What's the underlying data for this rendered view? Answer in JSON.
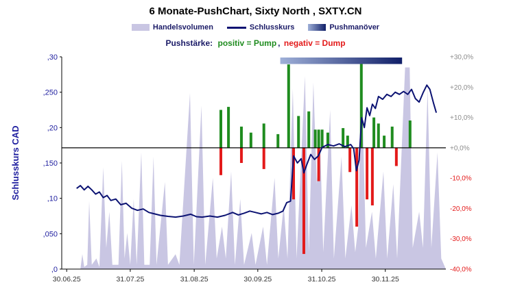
{
  "title": "6 Monate-PushChart, Sixty North , SXTY.CN",
  "legend": {
    "volume": "Handelsvolumen",
    "close": "Schlusskurs",
    "push": "Pushmanöver"
  },
  "subtitle": {
    "prefix": "Pushstärke:",
    "positive": "positiv = Pump",
    "comma": ",",
    "negative": "negativ = Dump"
  },
  "y_axis_title": "Schlusskurs CAD",
  "colors": {
    "volume": "#c9c6e3",
    "close_line": "#0b1272",
    "band_light": "#9fb0d8",
    "band_dark": "#101f68",
    "pump": "#1f8c1f",
    "dump": "#e31a1a",
    "axis_left_text": "#2020a0",
    "axis_right_pos": "#8c8c8c",
    "axis_right_neg": "#e31a1a",
    "x_text": "#333333"
  },
  "chart_data": {
    "type": "composite",
    "series_types": {
      "volume": "area",
      "close": "line",
      "push": "bar",
      "band": "interval"
    },
    "x_unit": "fraction-of-plot-width",
    "x_ticks": [
      "30.06.25",
      "31.07.25",
      "31.08.25",
      "30.09.25",
      "31.10.25",
      "30.11.25"
    ],
    "x_tick_pos": [
      0.004,
      0.171,
      0.339,
      0.506,
      0.674,
      0.841
    ],
    "price_axis": {
      "label": "Schlusskurs CAD",
      "range": [
        0,
        0.3
      ],
      "ticks": [
        {
          "v": 0.3,
          "t": ",30"
        },
        {
          "v": 0.25,
          "t": ",250"
        },
        {
          "v": 0.2,
          "t": ",20"
        },
        {
          "v": 0.15,
          "t": ",150"
        },
        {
          "v": 0.1,
          "t": ",10"
        },
        {
          "v": 0.05,
          "t": ",050"
        },
        {
          "v": 0.0,
          "t": ",0"
        }
      ]
    },
    "pct_axis": {
      "range": [
        -40,
        30
      ],
      "ticks": [
        {
          "v": 30,
          "t": "+30,0%"
        },
        {
          "v": 20,
          "t": "+20,0%"
        },
        {
          "v": 10,
          "t": "+10,0%"
        },
        {
          "v": 0,
          "t": "+0,0%"
        },
        {
          "v": -10,
          "t": "-10,0%"
        },
        {
          "v": -20,
          "t": "-20,0%"
        },
        {
          "v": -30,
          "t": "-30,0%"
        },
        {
          "v": -40,
          "t": "-40,0%"
        }
      ]
    },
    "close_series": [
      [
        0.03,
        0.114
      ],
      [
        0.04,
        0.118
      ],
      [
        0.05,
        0.112
      ],
      [
        0.06,
        0.117
      ],
      [
        0.07,
        0.112
      ],
      [
        0.08,
        0.106
      ],
      [
        0.09,
        0.109
      ],
      [
        0.1,
        0.101
      ],
      [
        0.11,
        0.104
      ],
      [
        0.12,
        0.097
      ],
      [
        0.133,
        0.099
      ],
      [
        0.146,
        0.091
      ],
      [
        0.16,
        0.093
      ],
      [
        0.175,
        0.086
      ],
      [
        0.19,
        0.083
      ],
      [
        0.205,
        0.085
      ],
      [
        0.22,
        0.08
      ],
      [
        0.235,
        0.078
      ],
      [
        0.25,
        0.076
      ],
      [
        0.27,
        0.0745
      ],
      [
        0.29,
        0.0735
      ],
      [
        0.31,
        0.075
      ],
      [
        0.33,
        0.0775
      ],
      [
        0.345,
        0.074
      ],
      [
        0.36,
        0.0735
      ],
      [
        0.38,
        0.075
      ],
      [
        0.4,
        0.0735
      ],
      [
        0.42,
        0.076
      ],
      [
        0.44,
        0.08
      ],
      [
        0.455,
        0.0765
      ],
      [
        0.47,
        0.079
      ],
      [
        0.485,
        0.082
      ],
      [
        0.5,
        0.08
      ],
      [
        0.515,
        0.078
      ],
      [
        0.53,
        0.08
      ],
      [
        0.545,
        0.077
      ],
      [
        0.56,
        0.079
      ],
      [
        0.572,
        0.082
      ],
      [
        0.582,
        0.094
      ],
      [
        0.592,
        0.096
      ],
      [
        0.6,
        0.16
      ],
      [
        0.61,
        0.15
      ],
      [
        0.62,
        0.156
      ],
      [
        0.627,
        0.136
      ],
      [
        0.635,
        0.148
      ],
      [
        0.645,
        0.162
      ],
      [
        0.655,
        0.155
      ],
      [
        0.665,
        0.16
      ],
      [
        0.675,
        0.172
      ],
      [
        0.69,
        0.176
      ],
      [
        0.705,
        0.174
      ],
      [
        0.72,
        0.177
      ],
      [
        0.735,
        0.173
      ],
      [
        0.75,
        0.176
      ],
      [
        0.758,
        0.17
      ],
      [
        0.765,
        0.139
      ],
      [
        0.772,
        0.154
      ],
      [
        0.779,
        0.214
      ],
      [
        0.786,
        0.2
      ],
      [
        0.793,
        0.228
      ],
      [
        0.8,
        0.217
      ],
      [
        0.807,
        0.233
      ],
      [
        0.815,
        0.227
      ],
      [
        0.823,
        0.244
      ],
      [
        0.834,
        0.24
      ],
      [
        0.845,
        0.247
      ],
      [
        0.856,
        0.244
      ],
      [
        0.867,
        0.25
      ],
      [
        0.878,
        0.247
      ],
      [
        0.889,
        0.251
      ],
      [
        0.9,
        0.247
      ],
      [
        0.91,
        0.254
      ],
      [
        0.92,
        0.241
      ],
      [
        0.93,
        0.236
      ],
      [
        0.94,
        0.249
      ],
      [
        0.95,
        0.26
      ],
      [
        0.958,
        0.254
      ],
      [
        0.968,
        0.234
      ],
      [
        0.975,
        0.221
      ]
    ],
    "volume_series_relative": [
      [
        0.0,
        0.0
      ],
      [
        0.04,
        0.0
      ],
      [
        0.045,
        0.07
      ],
      [
        0.05,
        0.01
      ],
      [
        0.058,
        0.02
      ],
      [
        0.063,
        0.32
      ],
      [
        0.07,
        0.02
      ],
      [
        0.082,
        0.05
      ],
      [
        0.09,
        0.01
      ],
      [
        0.1,
        0.48
      ],
      [
        0.108,
        0.1
      ],
      [
        0.116,
        0.27
      ],
      [
        0.124,
        0.02
      ],
      [
        0.14,
        0.02
      ],
      [
        0.149,
        0.51
      ],
      [
        0.156,
        0.05
      ],
      [
        0.163,
        0.17
      ],
      [
        0.171,
        0.02
      ],
      [
        0.18,
        0.33
      ],
      [
        0.188,
        0.02
      ],
      [
        0.2,
        0.55
      ],
      [
        0.208,
        0.02
      ],
      [
        0.222,
        0.02
      ],
      [
        0.232,
        0.53
      ],
      [
        0.24,
        0.02
      ],
      [
        0.262,
        0.41
      ],
      [
        0.27,
        0.02
      ],
      [
        0.29,
        0.07
      ],
      [
        0.3,
        0.02
      ],
      [
        0.328,
        0.83
      ],
      [
        0.338,
        0.02
      ],
      [
        0.358,
        0.77
      ],
      [
        0.368,
        0.02
      ],
      [
        0.388,
        0.43
      ],
      [
        0.398,
        0.05
      ],
      [
        0.412,
        0.2
      ],
      [
        0.422,
        0.05
      ],
      [
        0.436,
        0.46
      ],
      [
        0.446,
        0.02
      ],
      [
        0.46,
        0.33
      ],
      [
        0.47,
        0.02
      ],
      [
        0.49,
        0.17
      ],
      [
        0.5,
        0.02
      ],
      [
        0.52,
        0.2
      ],
      [
        0.53,
        0.02
      ],
      [
        0.55,
        0.43
      ],
      [
        0.56,
        0.05
      ],
      [
        0.574,
        0.3
      ],
      [
        0.584,
        0.05
      ],
      [
        0.598,
        0.85
      ],
      [
        0.608,
        0.05
      ],
      [
        0.63,
        0.91
      ],
      [
        0.64,
        0.08
      ],
      [
        0.652,
        0.88
      ],
      [
        0.661,
        0.4
      ],
      [
        0.669,
        0.65
      ],
      [
        0.678,
        0.08
      ],
      [
        0.696,
        0.75
      ],
      [
        0.706,
        0.05
      ],
      [
        0.726,
        0.53
      ],
      [
        0.736,
        0.05
      ],
      [
        0.752,
        0.3
      ],
      [
        0.762,
        0.08
      ],
      [
        0.77,
        0.2
      ],
      [
        0.778,
        0.99
      ],
      [
        0.79,
        0.1
      ],
      [
        0.806,
        0.27
      ],
      [
        0.816,
        0.05
      ],
      [
        0.836,
        0.46
      ],
      [
        0.846,
        0.05
      ],
      [
        0.862,
        0.4
      ],
      [
        0.872,
        0.05
      ],
      [
        0.893,
        0.95
      ],
      [
        0.905,
        0.95
      ],
      [
        0.913,
        0.1
      ],
      [
        0.93,
        0.27
      ],
      [
        0.94,
        0.1
      ],
      [
        0.952,
        0.85
      ],
      [
        0.962,
        0.1
      ],
      [
        0.978,
        0.55
      ],
      [
        0.988,
        0.05
      ],
      [
        1.0,
        0.0
      ]
    ],
    "push_bars_pct": [
      [
        0.409,
        12.5
      ],
      [
        0.409,
        -9
      ],
      [
        0.429,
        13.5
      ],
      [
        0.463,
        7
      ],
      [
        0.463,
        -5
      ],
      [
        0.488,
        5
      ],
      [
        0.522,
        8
      ],
      [
        0.522,
        -7
      ],
      [
        0.559,
        4.5
      ],
      [
        0.587,
        27.5
      ],
      [
        0.6,
        -17
      ],
      [
        0.613,
        10.5
      ],
      [
        0.627,
        -35
      ],
      [
        0.64,
        12
      ],
      [
        0.657,
        6
      ],
      [
        0.666,
        6
      ],
      [
        0.666,
        -11
      ],
      [
        0.675,
        6
      ],
      [
        0.69,
        5
      ],
      [
        0.73,
        6.5
      ],
      [
        0.742,
        4
      ],
      [
        0.748,
        -8
      ],
      [
        0.766,
        -26
      ],
      [
        0.778,
        28
      ],
      [
        0.793,
        -17
      ],
      [
        0.807,
        -19
      ],
      [
        0.811,
        10
      ],
      [
        0.823,
        8
      ],
      [
        0.838,
        4
      ],
      [
        0.859,
        7
      ],
      [
        0.87,
        -6
      ],
      [
        0.906,
        9
      ]
    ],
    "push_band": {
      "from": 0.565,
      "to": 0.885
    }
  }
}
